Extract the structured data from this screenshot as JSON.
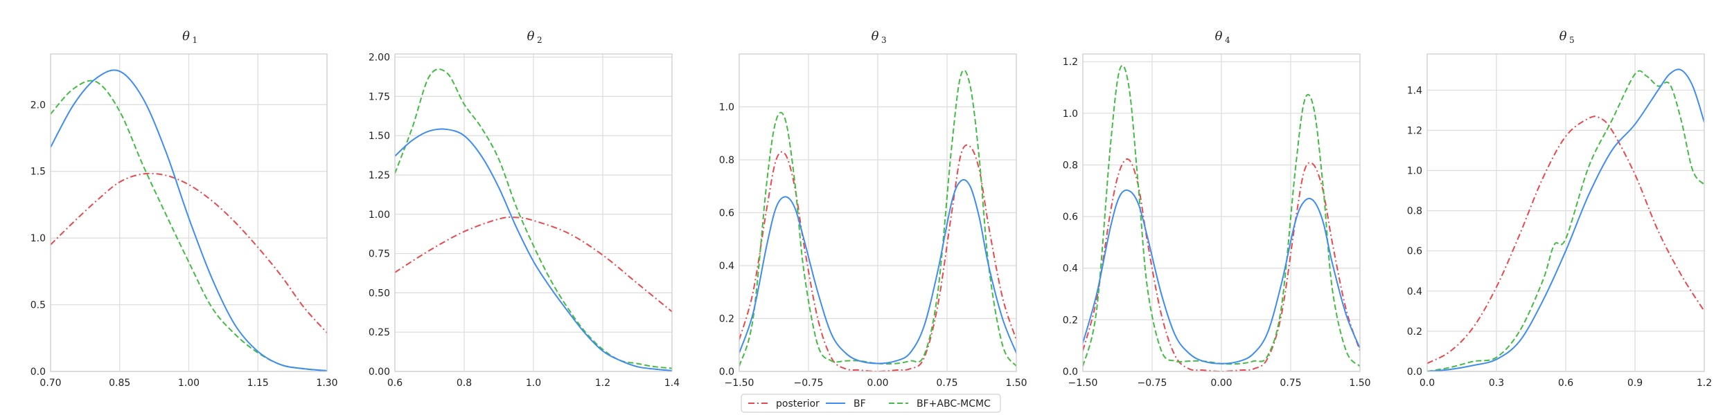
{
  "legend": {
    "entries": [
      {
        "label": "posterior",
        "color": "#e8484e",
        "dash": "dashdot"
      },
      {
        "label": "BF",
        "color": "#3f8cf0",
        "dash": "solid"
      },
      {
        "label": "BF+ABC-MCMC",
        "color": "#44bb44",
        "dash": "dashed"
      }
    ]
  },
  "chart_data": [
    {
      "type": "line",
      "title_symbol": "θ",
      "title_subscript": "1",
      "xlim": [
        0.7,
        1.3
      ],
      "ylim": [
        0,
        2.38
      ],
      "xticks": [
        "0.70",
        "0.85",
        "1.00",
        "1.15",
        "1.30"
      ],
      "xtick_values": [
        0.7,
        0.85,
        1.0,
        1.15,
        1.3
      ],
      "yticks": [
        "0.0",
        "0.5",
        "1.0",
        "1.5",
        "2.0"
      ],
      "ytick_values": [
        0.0,
        0.5,
        1.0,
        1.5,
        2.0
      ],
      "grid": true,
      "series": [
        {
          "name": "posterior",
          "x": [
            0.7,
            0.75,
            0.8,
            0.85,
            0.9,
            0.95,
            1.0,
            1.05,
            1.1,
            1.15,
            1.2,
            1.25,
            1.3
          ],
          "y": [
            0.95,
            1.12,
            1.28,
            1.42,
            1.48,
            1.47,
            1.4,
            1.28,
            1.12,
            0.93,
            0.72,
            0.48,
            0.29
          ]
        },
        {
          "name": "BF",
          "x": [
            0.7,
            0.75,
            0.8,
            0.85,
            0.9,
            0.95,
            1.0,
            1.05,
            1.1,
            1.15,
            1.2,
            1.25,
            1.3
          ],
          "y": [
            1.68,
            2.0,
            2.2,
            2.25,
            2.05,
            1.65,
            1.15,
            0.7,
            0.35,
            0.15,
            0.05,
            0.02,
            0.005
          ]
        },
        {
          "name": "BF+ABC-MCMC",
          "x": [
            0.7,
            0.75,
            0.8,
            0.85,
            0.9,
            0.95,
            1.0,
            1.05,
            1.1,
            1.15,
            1.2,
            1.25,
            1.3
          ],
          "y": [
            1.93,
            2.12,
            2.17,
            1.95,
            1.55,
            1.18,
            0.82,
            0.48,
            0.28,
            0.14,
            0.05,
            0.02,
            0.005
          ]
        }
      ]
    },
    {
      "type": "line",
      "title_symbol": "θ",
      "title_subscript": "2",
      "xlim": [
        0.6,
        1.4
      ],
      "ylim": [
        0,
        2.02
      ],
      "xticks": [
        "0.6",
        "0.8",
        "1.0",
        "1.2",
        "1.4"
      ],
      "xtick_values": [
        0.6,
        0.8,
        1.0,
        1.2,
        1.4
      ],
      "yticks": [
        "0.00",
        "0.25",
        "0.50",
        "0.75",
        "1.00",
        "1.25",
        "1.50",
        "1.75",
        "2.00"
      ],
      "ytick_values": [
        0.0,
        0.25,
        0.5,
        0.75,
        1.0,
        1.25,
        1.5,
        1.75,
        2.0
      ],
      "grid": true,
      "series": [
        {
          "name": "posterior",
          "x": [
            0.6,
            0.7,
            0.8,
            0.9,
            0.95,
            1.0,
            1.1,
            1.2,
            1.3,
            1.4
          ],
          "y": [
            0.63,
            0.77,
            0.89,
            0.97,
            0.98,
            0.96,
            0.88,
            0.74,
            0.56,
            0.38
          ]
        },
        {
          "name": "BF",
          "x": [
            0.6,
            0.65,
            0.7,
            0.75,
            0.8,
            0.85,
            0.9,
            0.95,
            1.0,
            1.05,
            1.1,
            1.15,
            1.2,
            1.25,
            1.3,
            1.35,
            1.4
          ],
          "y": [
            1.37,
            1.47,
            1.53,
            1.54,
            1.5,
            1.37,
            1.17,
            0.92,
            0.7,
            0.53,
            0.38,
            0.24,
            0.13,
            0.07,
            0.03,
            0.015,
            0.005
          ]
        },
        {
          "name": "BF+ABC-MCMC",
          "x": [
            0.6,
            0.65,
            0.7,
            0.75,
            0.8,
            0.85,
            0.9,
            0.95,
            1.0,
            1.05,
            1.1,
            1.15,
            1.2,
            1.25,
            1.3,
            1.35,
            1.4
          ],
          "y": [
            1.26,
            1.55,
            1.88,
            1.9,
            1.7,
            1.55,
            1.35,
            1.05,
            0.8,
            0.58,
            0.4,
            0.25,
            0.14,
            0.07,
            0.05,
            0.03,
            0.02
          ]
        }
      ]
    },
    {
      "type": "line",
      "title_symbol": "θ",
      "title_subscript": "3",
      "xlim": [
        -1.5,
        1.5
      ],
      "ylim": [
        0,
        1.2
      ],
      "xticks": [
        "−1.50",
        "−0.75",
        "0.00",
        "0.75",
        "1.50"
      ],
      "xtick_values": [
        -1.5,
        -0.75,
        0.0,
        0.75,
        1.5
      ],
      "yticks": [
        "0.0",
        "0.2",
        "0.4",
        "0.6",
        "0.8",
        "1.0"
      ],
      "ytick_values": [
        0.0,
        0.2,
        0.4,
        0.6,
        0.8,
        1.0
      ],
      "grid": true,
      "series": [
        {
          "name": "posterior",
          "x": [
            -1.5,
            -1.35,
            -1.2,
            -1.1,
            -1.0,
            -0.9,
            -0.8,
            -0.65,
            -0.5,
            -0.35,
            -0.2,
            0.0,
            0.2,
            0.35,
            0.5,
            0.65,
            0.8,
            0.9,
            1.0,
            1.1,
            1.2,
            1.35,
            1.5
          ],
          "y": [
            0.12,
            0.3,
            0.62,
            0.8,
            0.82,
            0.7,
            0.48,
            0.2,
            0.05,
            0.01,
            0.005,
            0.0,
            0.005,
            0.01,
            0.05,
            0.25,
            0.6,
            0.82,
            0.85,
            0.76,
            0.55,
            0.28,
            0.12
          ]
        },
        {
          "name": "BF",
          "x": [
            -1.5,
            -1.35,
            -1.2,
            -1.1,
            -1.0,
            -0.9,
            -0.8,
            -0.65,
            -0.5,
            -0.35,
            -0.2,
            0.0,
            0.2,
            0.35,
            0.5,
            0.65,
            0.8,
            0.9,
            1.0,
            1.1,
            1.2,
            1.35,
            1.5
          ],
          "y": [
            0.07,
            0.22,
            0.48,
            0.62,
            0.66,
            0.62,
            0.5,
            0.3,
            0.14,
            0.07,
            0.04,
            0.03,
            0.04,
            0.07,
            0.17,
            0.38,
            0.64,
            0.72,
            0.7,
            0.58,
            0.4,
            0.2,
            0.07
          ]
        },
        {
          "name": "BF+ABC-MCMC",
          "x": [
            -1.5,
            -1.35,
            -1.2,
            -1.1,
            -1.0,
            -0.9,
            -0.8,
            -0.65,
            -0.5,
            -0.35,
            -0.2,
            0.0,
            0.2,
            0.35,
            0.5,
            0.65,
            0.8,
            0.9,
            1.0,
            1.1,
            1.2,
            1.35,
            1.5
          ],
          "y": [
            0.02,
            0.2,
            0.72,
            0.95,
            0.95,
            0.72,
            0.38,
            0.1,
            0.04,
            0.04,
            0.04,
            0.03,
            0.03,
            0.04,
            0.06,
            0.3,
            0.85,
            1.12,
            1.08,
            0.8,
            0.4,
            0.1,
            0.02
          ]
        }
      ]
    },
    {
      "type": "line",
      "title_symbol": "θ",
      "title_subscript": "4",
      "xlim": [
        -1.5,
        1.5
      ],
      "ylim": [
        0,
        1.23
      ],
      "xticks": [
        "−1.50",
        "−0.75",
        "0.00",
        "0.75",
        "1.50"
      ],
      "xtick_values": [
        -1.5,
        -0.75,
        0.0,
        0.75,
        1.5
      ],
      "yticks": [
        "0.0",
        "0.2",
        "0.4",
        "0.6",
        "0.8",
        "1.0",
        "1.2"
      ],
      "ytick_values": [
        0.0,
        0.2,
        0.4,
        0.6,
        0.8,
        1.0,
        1.2
      ],
      "grid": true,
      "series": [
        {
          "name": "posterior",
          "x": [
            -1.5,
            -1.35,
            -1.2,
            -1.1,
            -1.0,
            -0.9,
            -0.8,
            -0.65,
            -0.5,
            -0.35,
            -0.2,
            0.0,
            0.2,
            0.35,
            0.5,
            0.65,
            0.8,
            0.9,
            1.0,
            1.1,
            1.2,
            1.35,
            1.5
          ],
          "y": [
            0.08,
            0.28,
            0.62,
            0.78,
            0.82,
            0.72,
            0.5,
            0.22,
            0.06,
            0.01,
            0.005,
            0.0,
            0.005,
            0.01,
            0.05,
            0.22,
            0.58,
            0.78,
            0.8,
            0.7,
            0.5,
            0.24,
            0.08
          ]
        },
        {
          "name": "BF",
          "x": [
            -1.5,
            -1.35,
            -1.2,
            -1.1,
            -1.0,
            -0.9,
            -0.8,
            -0.65,
            -0.5,
            -0.35,
            -0.2,
            0.0,
            0.2,
            0.35,
            0.5,
            0.65,
            0.8,
            0.9,
            1.0,
            1.1,
            1.2,
            1.35,
            1.5
          ],
          "y": [
            0.11,
            0.3,
            0.56,
            0.68,
            0.7,
            0.65,
            0.52,
            0.3,
            0.14,
            0.07,
            0.04,
            0.03,
            0.04,
            0.07,
            0.15,
            0.34,
            0.58,
            0.66,
            0.66,
            0.58,
            0.42,
            0.22,
            0.09
          ]
        },
        {
          "name": "BF+ABC-MCMC",
          "x": [
            -1.5,
            -1.35,
            -1.2,
            -1.1,
            -1.0,
            -0.9,
            -0.8,
            -0.65,
            -0.5,
            -0.35,
            -0.2,
            0.0,
            0.2,
            0.35,
            0.5,
            0.65,
            0.8,
            0.9,
            1.0,
            1.1,
            1.2,
            1.35,
            1.5
          ],
          "y": [
            0.02,
            0.24,
            0.88,
            1.17,
            1.1,
            0.72,
            0.32,
            0.08,
            0.04,
            0.04,
            0.04,
            0.03,
            0.03,
            0.04,
            0.06,
            0.25,
            0.78,
            1.05,
            1.02,
            0.72,
            0.32,
            0.08,
            0.02
          ]
        }
      ]
    },
    {
      "type": "line",
      "title_symbol": "θ",
      "title_subscript": "5",
      "xlim": [
        0.0,
        1.2
      ],
      "ylim": [
        0,
        1.58
      ],
      "xticks": [
        "0.0",
        "0.3",
        "0.6",
        "0.9",
        "1.2"
      ],
      "xtick_values": [
        0.0,
        0.3,
        0.6,
        0.9,
        1.2
      ],
      "yticks": [
        "0.0",
        "0.2",
        "0.4",
        "0.6",
        "0.8",
        "1.0",
        "1.2",
        "1.4"
      ],
      "ytick_values": [
        0.0,
        0.2,
        0.4,
        0.6,
        0.8,
        1.0,
        1.2,
        1.4
      ],
      "grid": true,
      "series": [
        {
          "name": "posterior",
          "x": [
            0.0,
            0.1,
            0.2,
            0.3,
            0.4,
            0.5,
            0.6,
            0.7,
            0.75,
            0.8,
            0.9,
            1.0,
            1.1,
            1.2
          ],
          "y": [
            0.04,
            0.1,
            0.22,
            0.42,
            0.68,
            0.96,
            1.17,
            1.26,
            1.26,
            1.2,
            0.98,
            0.7,
            0.48,
            0.3
          ]
        },
        {
          "name": "BF",
          "x": [
            0.0,
            0.1,
            0.2,
            0.3,
            0.4,
            0.5,
            0.6,
            0.7,
            0.8,
            0.9,
            1.0,
            1.05,
            1.1,
            1.15,
            1.2
          ],
          "y": [
            0.0,
            0.01,
            0.03,
            0.06,
            0.15,
            0.35,
            0.6,
            0.88,
            1.1,
            1.23,
            1.4,
            1.48,
            1.5,
            1.42,
            1.24
          ]
        },
        {
          "name": "BF+ABC-MCMC",
          "x": [
            0.0,
            0.1,
            0.2,
            0.3,
            0.4,
            0.5,
            0.55,
            0.6,
            0.7,
            0.8,
            0.9,
            0.95,
            1.0,
            1.05,
            1.1,
            1.15,
            1.2
          ],
          "y": [
            0.0,
            0.02,
            0.05,
            0.07,
            0.2,
            0.45,
            0.63,
            0.66,
            1.02,
            1.25,
            1.48,
            1.47,
            1.42,
            1.43,
            1.25,
            1.0,
            0.93
          ]
        }
      ]
    }
  ]
}
